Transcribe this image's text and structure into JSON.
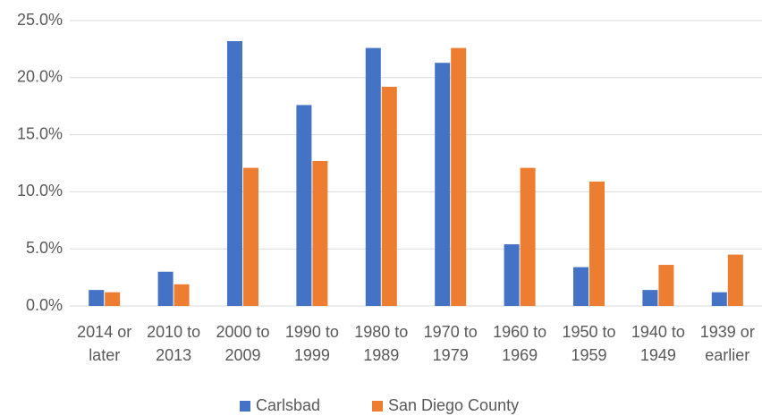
{
  "chart_data": {
    "type": "bar",
    "categories": [
      "2014 or later",
      "2010 to 2013",
      "2000 to 2009",
      "1990 to 1999",
      "1980 to 1989",
      "1970 to 1979",
      "1960 to 1969",
      "1950 to 1959",
      "1940 to 1949",
      "1939 or earlier"
    ],
    "series": [
      {
        "name": "Carlsbad",
        "color": "#4472c4",
        "values": [
          1.4,
          3.0,
          23.2,
          17.6,
          22.6,
          21.3,
          5.4,
          3.4,
          1.4,
          1.2
        ]
      },
      {
        "name": "San Diego County",
        "color": "#ed7d31",
        "values": [
          1.2,
          1.9,
          12.1,
          12.7,
          19.2,
          22.6,
          12.1,
          10.9,
          3.6,
          4.5
        ]
      }
    ],
    "ylim": [
      0,
      25
    ],
    "yticks": [
      {
        "value": 0,
        "label": "0.0%"
      },
      {
        "value": 5,
        "label": "5.0%"
      },
      {
        "value": 10,
        "label": "10.0%"
      },
      {
        "value": 15,
        "label": "15.0%"
      },
      {
        "value": 20,
        "label": "20.0%"
      },
      {
        "value": 25,
        "label": "25.0%"
      }
    ],
    "grid": true,
    "legend": "bottom"
  }
}
